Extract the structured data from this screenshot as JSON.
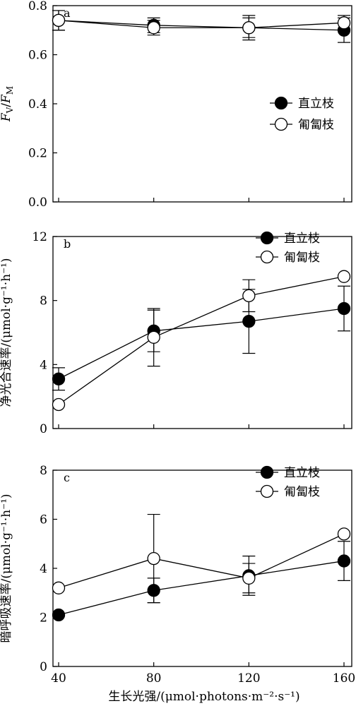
{
  "figure": {
    "xlabel": "生长光强/(μmol·photons·m⁻²·s⁻¹)"
  },
  "chart_data": [
    {
      "type": "line",
      "panel": "a",
      "title": "",
      "xlabel": "",
      "ylabel": "FV/FM",
      "ylabel_parts": [
        "F",
        "V",
        "/",
        "F",
        "M"
      ],
      "x": [
        40,
        80,
        120,
        160
      ],
      "xlim": [
        40,
        160
      ],
      "ylim": [
        0,
        0.8
      ],
      "yticks": [
        "0.0",
        "0.2",
        "0.4",
        "0.6",
        "0.8"
      ],
      "xticks": [],
      "grid": false,
      "legend_position": "right-middle",
      "series": [
        {
          "name": "直立枝",
          "marker": "filled-circle",
          "values": [
            0.74,
            0.72,
            0.71,
            0.7
          ],
          "errors": [
            0.04,
            0.03,
            0.05,
            0.05
          ]
        },
        {
          "name": "匍匐枝",
          "marker": "open-circle",
          "values": [
            0.74,
            0.71,
            0.71,
            0.73
          ],
          "errors": [
            0.04,
            0.03,
            0.04,
            0.03
          ]
        }
      ]
    },
    {
      "type": "line",
      "panel": "b",
      "title": "",
      "xlabel": "",
      "ylabel": "净光合速率/(μmol·g⁻¹·h⁻¹)",
      "x": [
        40,
        80,
        120,
        160
      ],
      "xlim": [
        40,
        160
      ],
      "ylim": [
        0,
        12
      ],
      "yticks": [
        "0",
        "4",
        "8",
        "12"
      ],
      "xticks": [],
      "grid": false,
      "legend_position": "top-right",
      "series": [
        {
          "name": "直立枝",
          "marker": "filled-circle",
          "values": [
            3.1,
            6.1,
            6.7,
            7.5
          ],
          "errors": [
            0.7,
            1.3,
            2.0,
            1.4
          ]
        },
        {
          "name": "匍匐枝",
          "marker": "open-circle",
          "values": [
            1.5,
            5.7,
            8.3,
            9.5
          ],
          "errors": [
            0.0,
            1.8,
            1.0,
            0.0
          ]
        }
      ]
    },
    {
      "type": "line",
      "panel": "c",
      "title": "",
      "xlabel": "生长光强/(μmol·photons·m⁻²·s⁻¹)",
      "ylabel": "暗呼吸速率/(μmol·g⁻¹·h⁻¹)",
      "x": [
        40,
        80,
        120,
        160
      ],
      "xlim": [
        40,
        160
      ],
      "ylim": [
        0,
        8
      ],
      "yticks": [
        "0",
        "2",
        "4",
        "6",
        "8"
      ],
      "xticks": [
        "40",
        "80",
        "120",
        "160"
      ],
      "grid": false,
      "legend_position": "top-right",
      "series": [
        {
          "name": "直立枝",
          "marker": "filled-circle",
          "values": [
            2.1,
            3.1,
            3.7,
            4.3
          ],
          "errors": [
            0.0,
            0.5,
            0.8,
            0.8
          ]
        },
        {
          "name": "匍匐枝",
          "marker": "open-circle",
          "values": [
            3.2,
            4.4,
            3.6,
            5.4
          ],
          "errors": [
            0.0,
            1.8,
            0.6,
            0.0
          ]
        }
      ]
    }
  ]
}
